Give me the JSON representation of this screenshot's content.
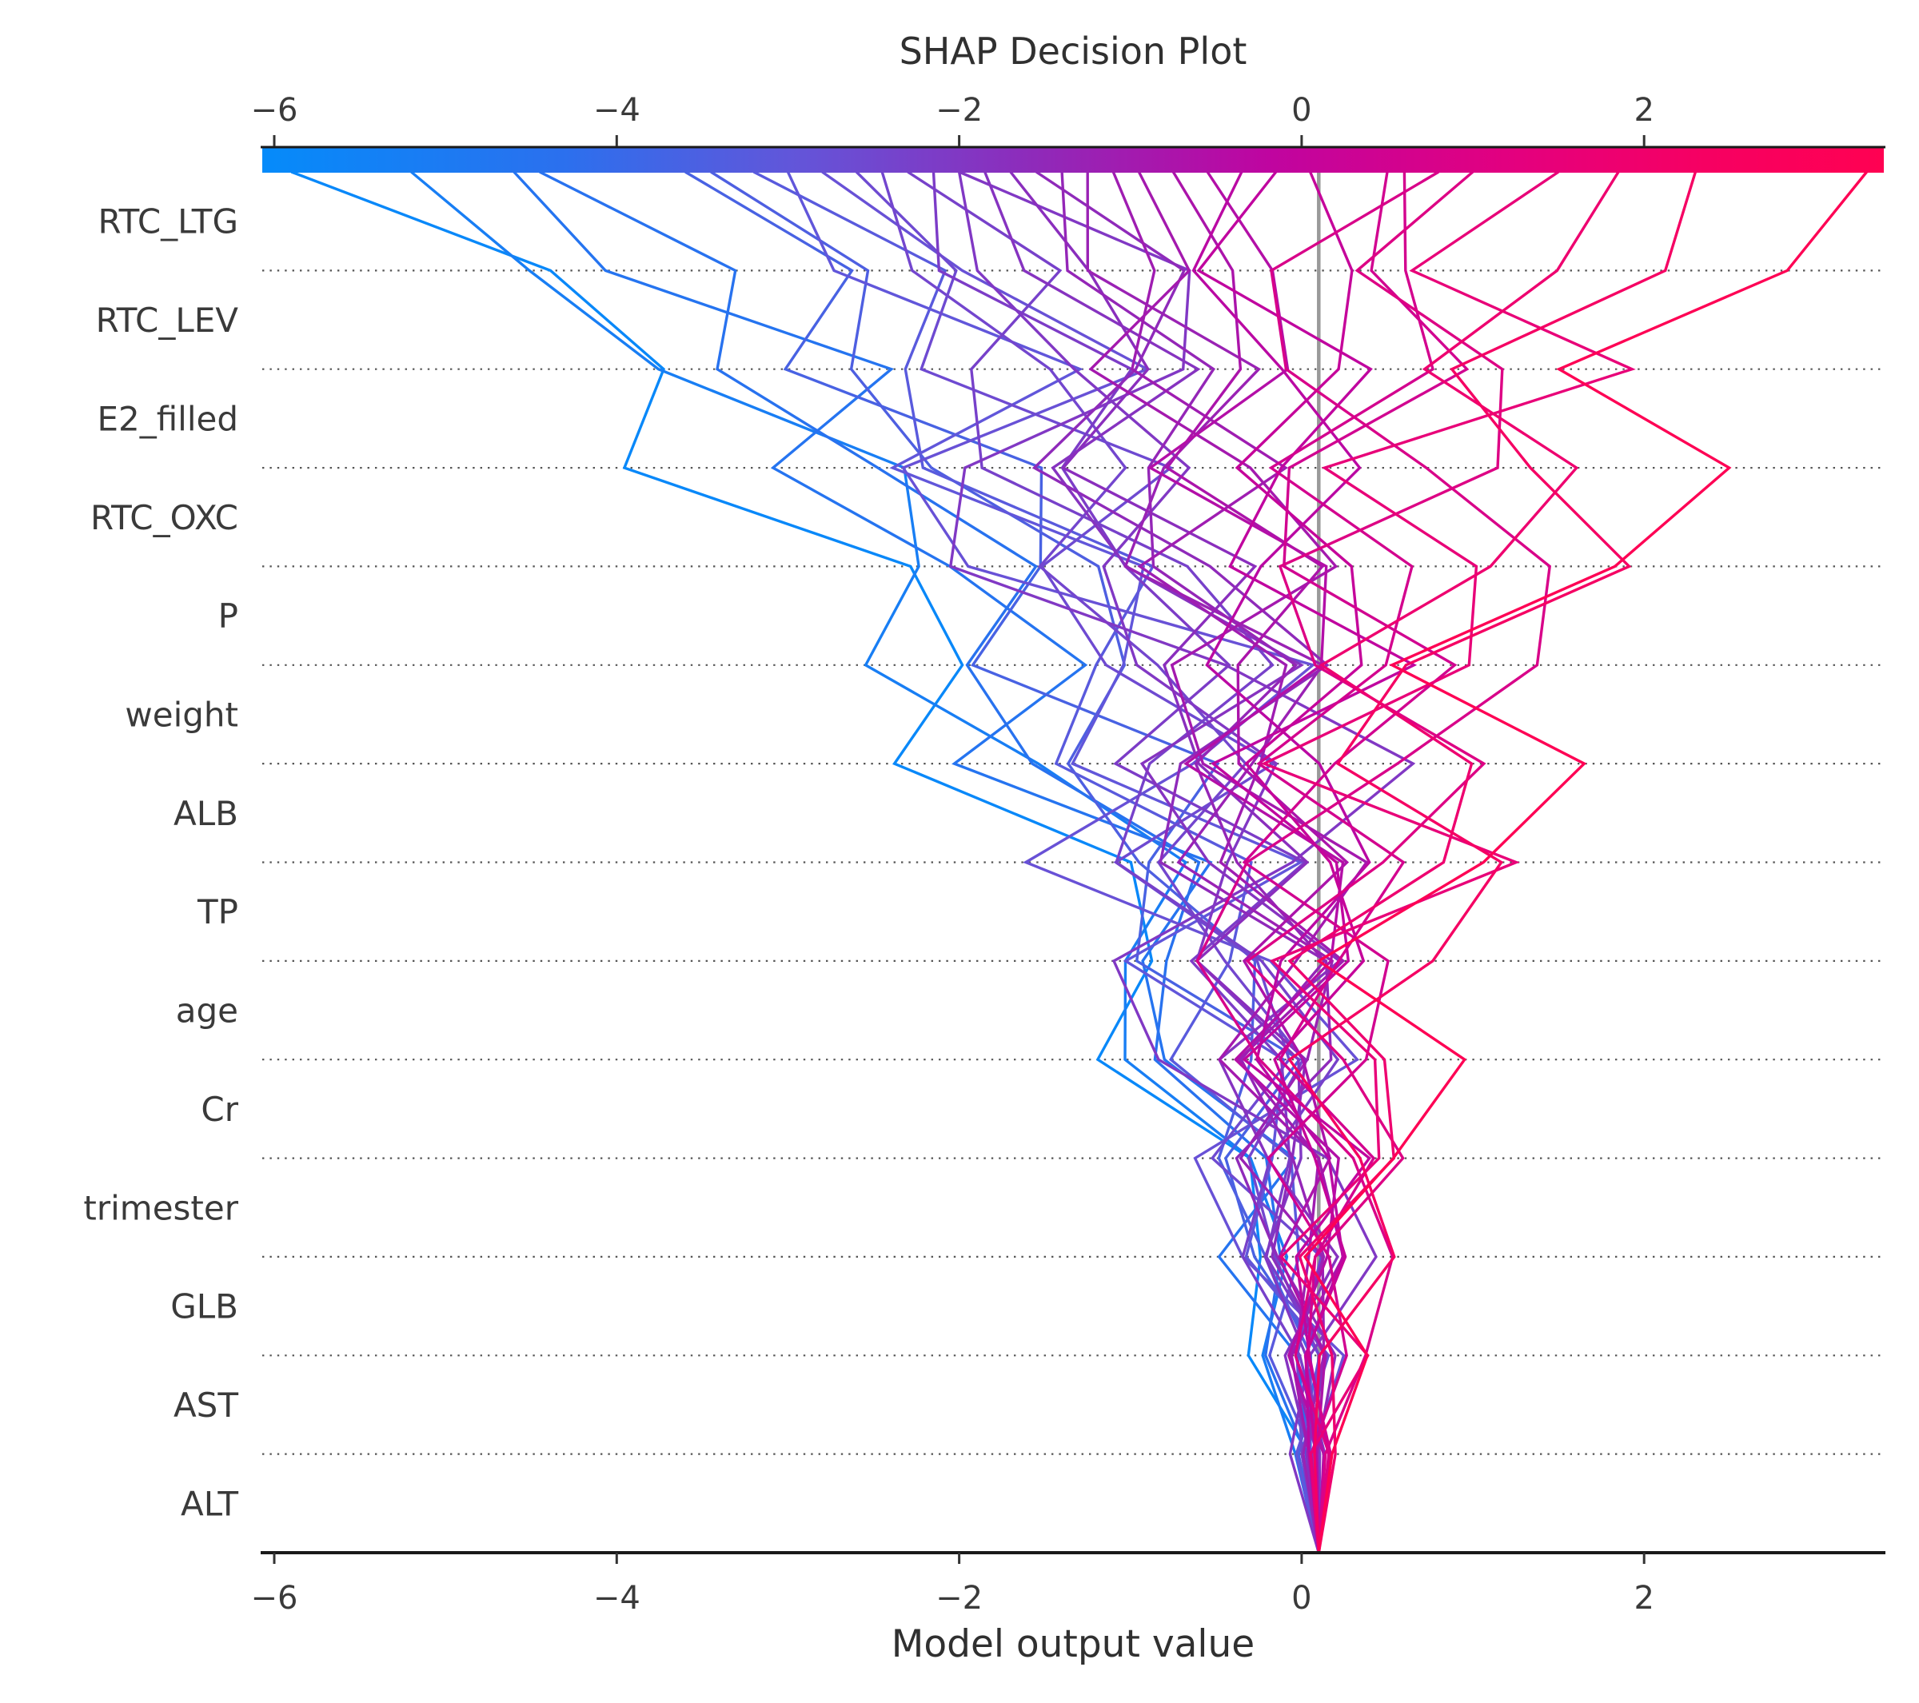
{
  "title": "SHAP Decision Plot",
  "xlabel": "Model output value",
  "colors": {
    "background": "#ffffff",
    "text": "#3a3a3a",
    "axis": "#1a1a1a",
    "gridline": "#555555",
    "base_value_line": "#999999",
    "colormap_low": "#058bfa",
    "colormap_high": "#ff0152"
  },
  "chart_data": {
    "type": "line",
    "variant": "shap_decision_plot",
    "title": "SHAP Decision Plot",
    "xlabel": "Model output value",
    "legend": "colorbar along top axis (model output value, blue to pink)",
    "grid": "dotted horizontal line per feature row",
    "features_top_to_bottom": [
      "RTC_LTG",
      "RTC_LEV",
      "E2_filled",
      "RTC_OXC",
      "P",
      "weight",
      "ALB",
      "TP",
      "age",
      "Cr",
      "trimester",
      "GLB",
      "AST",
      "ALT"
    ],
    "x_ticks": [
      -6,
      -4,
      -2,
      0,
      2
    ],
    "x_tick_labels": [
      "−6",
      "−4",
      "−2",
      "0",
      "2"
    ],
    "xlim": [
      -6.07,
      3.4
    ],
    "base_value": 0.1,
    "n_observations": 35,
    "colormap": [
      [
        0.0,
        "#058bfa"
      ],
      [
        0.185,
        "#2b70ee"
      ],
      [
        0.33,
        "#6355d9"
      ],
      [
        0.48,
        "#9029b9"
      ],
      [
        0.62,
        "#bf05a0"
      ],
      [
        0.775,
        "#e4007e"
      ],
      [
        0.89,
        "#f60062"
      ],
      [
        1.0,
        "#ff0152"
      ]
    ],
    "contribution_profile": [
      0,
      0.018,
      0.042,
      0.07,
      0.105,
      0.145,
      0.19,
      0.245,
      0.31,
      0.385,
      0.47,
      0.565,
      0.675,
      0.8,
      1.0
    ],
    "wiggle_window": [
      0,
      0.122,
      0.271,
      0.424,
      0.574,
      0.715,
      0.843,
      0.956,
      1.047,
      1.11,
      1.14,
      1.123,
      1.04,
      0.837,
      0
    ],
    "observations": [
      {
        "final": -5.9,
        "amp": 0.6,
        "freq": 2.1,
        "phase": 0.3
      },
      {
        "final": -5.2,
        "amp": 0.55,
        "freq": 1.7,
        "phase": 2.1
      },
      {
        "final": -4.6,
        "amp": 0.65,
        "freq": 2.4,
        "phase": 4.2
      },
      {
        "final": -4.45,
        "amp": 0.45,
        "freq": 1.9,
        "phase": 1.1
      },
      {
        "final": -3.6,
        "amp": 0.6,
        "freq": 2.2,
        "phase": 3.3
      },
      {
        "final": -3.45,
        "amp": 0.4,
        "freq": 1.6,
        "phase": 5.0
      },
      {
        "final": -3.2,
        "amp": 0.55,
        "freq": 2.0,
        "phase": 0.8
      },
      {
        "final": -3.0,
        "amp": 0.7,
        "freq": 2.5,
        "phase": 2.7
      },
      {
        "final": -2.8,
        "amp": 1.05,
        "freq": 1.8,
        "phase": 4.6
      },
      {
        "final": -2.6,
        "amp": 0.6,
        "freq": 2.3,
        "phase": 1.6
      },
      {
        "final": -2.45,
        "amp": 0.4,
        "freq": 2.0,
        "phase": 3.9
      },
      {
        "final": -2.3,
        "amp": 0.65,
        "freq": 1.5,
        "phase": 0.2
      },
      {
        "final": -2.15,
        "amp": 0.5,
        "freq": 2.6,
        "phase": 2.4
      },
      {
        "final": -2.0,
        "amp": 0.4,
        "freq": 1.9,
        "phase": 5.5
      },
      {
        "final": -2.0,
        "amp": 1.15,
        "freq": 1.3,
        "phase": 3.8
      },
      {
        "final": -1.85,
        "amp": 0.6,
        "freq": 2.1,
        "phase": 1.3
      },
      {
        "final": -1.7,
        "amp": 0.45,
        "freq": 2.4,
        "phase": 3.1
      },
      {
        "final": -1.55,
        "amp": 0.65,
        "freq": 1.7,
        "phase": 4.8
      },
      {
        "final": -1.4,
        "amp": 0.4,
        "freq": 2.2,
        "phase": 0.6
      },
      {
        "final": -1.25,
        "amp": 0.55,
        "freq": 2.0,
        "phase": 2.9
      },
      {
        "final": -1.1,
        "amp": 0.45,
        "freq": 2.5,
        "phase": 5.2
      },
      {
        "final": -0.95,
        "amp": 0.6,
        "freq": 1.8,
        "phase": 1.9
      },
      {
        "final": -0.75,
        "amp": 0.4,
        "freq": 2.3,
        "phase": 4.1
      },
      {
        "final": -0.55,
        "amp": 0.55,
        "freq": 2.1,
        "phase": 0.4
      },
      {
        "final": -0.35,
        "amp": 0.45,
        "freq": 1.6,
        "phase": 2.6
      },
      {
        "final": -0.15,
        "amp": 0.6,
        "freq": 2.4,
        "phase": 4.9
      },
      {
        "final": 0.05,
        "amp": 0.4,
        "freq": 2.0,
        "phase": 1.5
      },
      {
        "final": 0.5,
        "amp": 0.6,
        "freq": 1.9,
        "phase": 3.6
      },
      {
        "final": 0.6,
        "amp": 0.5,
        "freq": 2.2,
        "phase": 5.7
      },
      {
        "final": 0.8,
        "amp": 1.0,
        "freq": 0.9,
        "phase": 5.6
      },
      {
        "final": 1.0,
        "amp": 0.7,
        "freq": 1.7,
        "phase": 0.9
      },
      {
        "final": 1.5,
        "amp": 0.85,
        "freq": 2.5,
        "phase": 3.0
      },
      {
        "final": 1.85,
        "amp": 0.6,
        "freq": 2.0,
        "phase": 5.4
      },
      {
        "final": 2.3,
        "amp": 0.7,
        "freq": 1.8,
        "phase": 2.2
      },
      {
        "final": 3.3,
        "amp": 0.75,
        "freq": 2.1,
        "phase": 4.4
      }
    ]
  }
}
